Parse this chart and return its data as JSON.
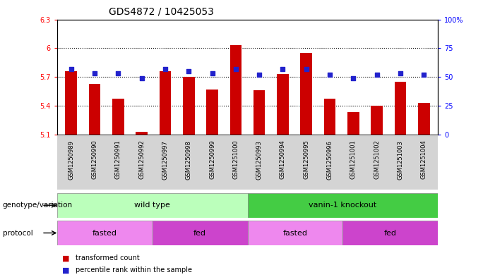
{
  "title": "GDS4872 / 10425053",
  "samples": [
    "GSM1250989",
    "GSM1250990",
    "GSM1250991",
    "GSM1250992",
    "GSM1250997",
    "GSM1250998",
    "GSM1250999",
    "GSM1251000",
    "GSM1250993",
    "GSM1250994",
    "GSM1250995",
    "GSM1250996",
    "GSM1251001",
    "GSM1251002",
    "GSM1251003",
    "GSM1251004"
  ],
  "red_values": [
    5.76,
    5.63,
    5.47,
    5.13,
    5.76,
    5.7,
    5.57,
    6.03,
    5.56,
    5.73,
    5.95,
    5.47,
    5.33,
    5.4,
    5.65,
    5.43
  ],
  "blue_values": [
    57,
    53,
    53,
    49,
    57,
    55,
    53,
    57,
    52,
    57,
    57,
    52,
    49,
    52,
    53,
    52
  ],
  "ylim_left": [
    5.1,
    6.3
  ],
  "ylim_right": [
    0,
    100
  ],
  "yticks_left": [
    5.1,
    5.4,
    5.7,
    6.0,
    6.3
  ],
  "ytick_labels_left": [
    "5.1",
    "5.4",
    "5.7",
    "6",
    "6.3"
  ],
  "yticks_right": [
    0,
    25,
    50,
    75,
    100
  ],
  "ytick_labels_right": [
    "0",
    "25",
    "50",
    "75",
    "100%"
  ],
  "hlines": [
    5.4,
    5.7,
    6.0
  ],
  "bar_color": "#cc0000",
  "dot_color": "#2222cc",
  "bg_color": "#d4d4d4",
  "plot_bg": "#ffffff",
  "genotype_groups": [
    {
      "label": "wild type",
      "start": 0,
      "end": 8,
      "color": "#bbffbb"
    },
    {
      "label": "vanin-1 knockout",
      "start": 8,
      "end": 16,
      "color": "#44cc44"
    }
  ],
  "protocol_groups": [
    {
      "label": "fasted",
      "start": 0,
      "end": 4,
      "color": "#ee88ee"
    },
    {
      "label": "fed",
      "start": 4,
      "end": 8,
      "color": "#cc44cc"
    },
    {
      "label": "fasted",
      "start": 8,
      "end": 12,
      "color": "#ee88ee"
    },
    {
      "label": "fed",
      "start": 12,
      "end": 16,
      "color": "#cc44cc"
    }
  ],
  "legend_items": [
    {
      "label": "transformed count",
      "color": "#cc0000"
    },
    {
      "label": "percentile rank within the sample",
      "color": "#2222cc"
    }
  ],
  "genotype_label": "genotype/variation",
  "protocol_label": "protocol",
  "title_fontsize": 10,
  "tick_fontsize": 7,
  "label_fontsize": 8,
  "bar_width": 0.5
}
